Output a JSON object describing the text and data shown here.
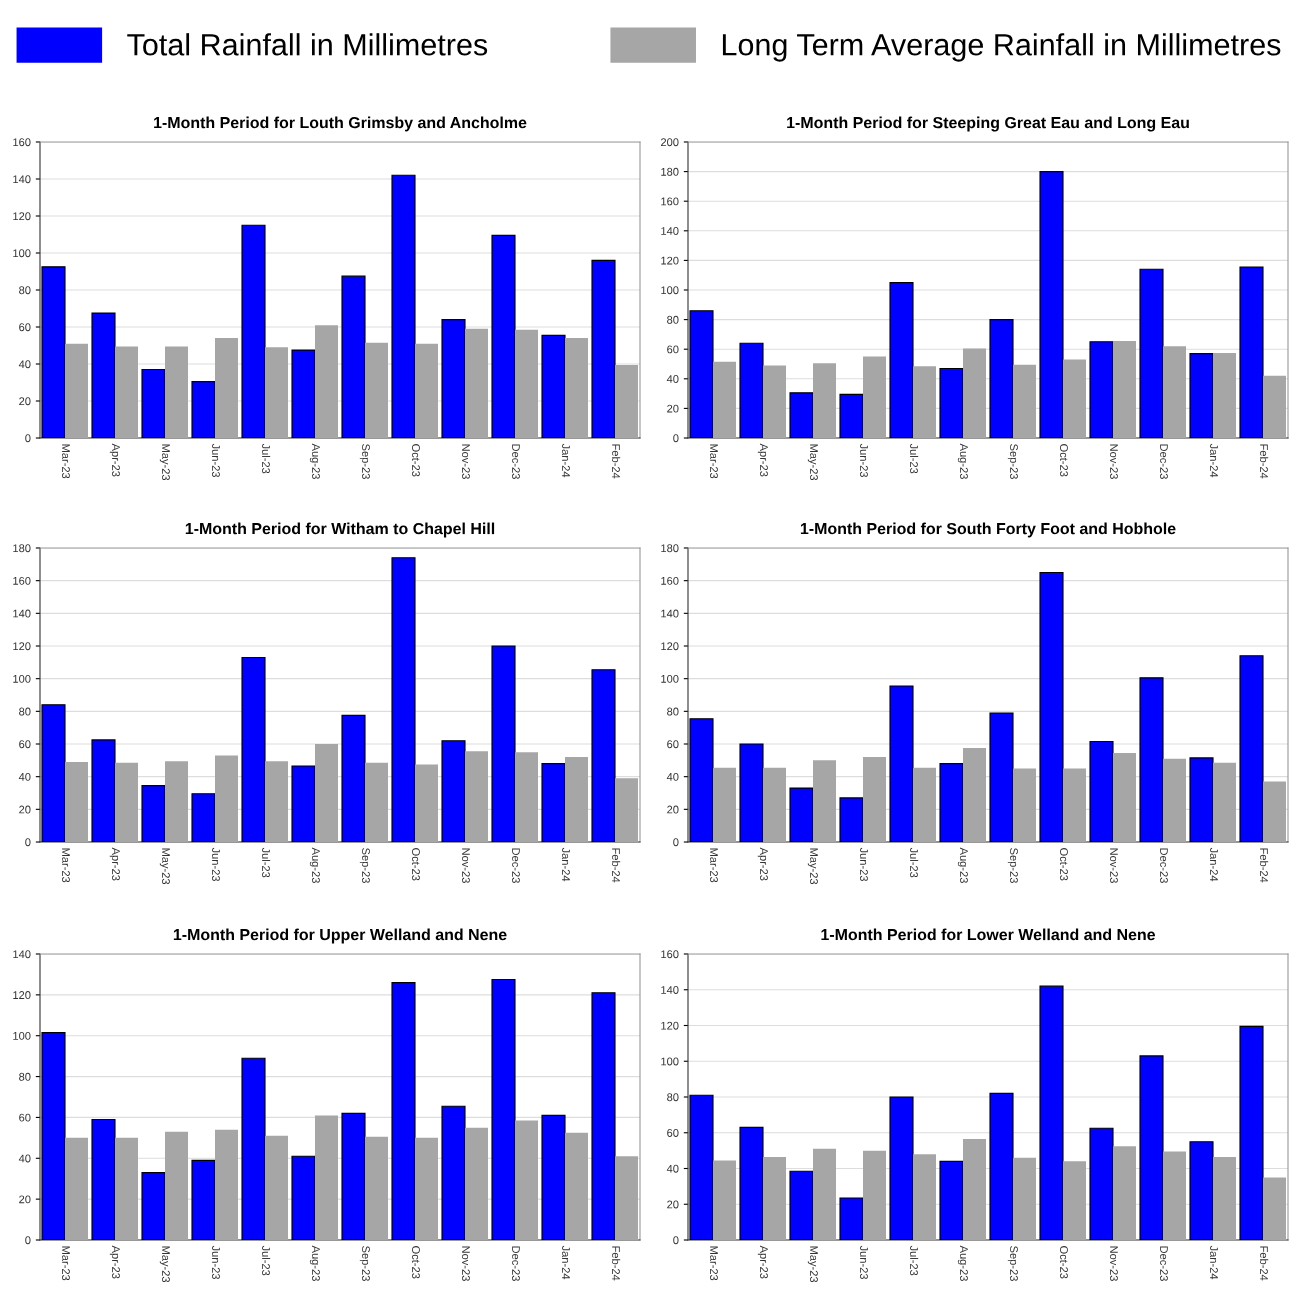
{
  "chart_data": [
    {
      "type": "bar",
      "title": "1-Month Period for Louth Grimsby and Ancholme",
      "legend": "top",
      "grid": "y",
      "categories": [
        "Mar-23",
        "Apr-23",
        "May-23",
        "Jun-23",
        "Jul-23",
        "Aug-23",
        "Sep-23",
        "Oct-23",
        "Nov-23",
        "Dec-23",
        "Jan-24",
        "Feb-24"
      ],
      "ylim": [
        0,
        160
      ],
      "yticks": [
        0,
        20,
        40,
        60,
        80,
        100,
        120,
        140,
        160
      ],
      "series": [
        {
          "name": "Total Rainfall in Millimetres",
          "color": "#0000ff",
          "values": [
            92.5,
            67.5,
            37,
            30.5,
            115,
            47.5,
            87.5,
            142,
            64,
            109.5,
            55.5,
            96
          ]
        },
        {
          "name": "Long Term Average Rainfall in Millimetres",
          "color": "#a6a6a6",
          "values": [
            51,
            49.5,
            49.5,
            54,
            49,
            61,
            51.5,
            51,
            59,
            58.5,
            54,
            39.5
          ]
        }
      ]
    },
    {
      "type": "bar",
      "title": "1-Month Period for Steeping Great Eau and Long Eau",
      "grid": "y",
      "categories": [
        "Mar-23",
        "Apr-23",
        "May-23",
        "Jun-23",
        "Jul-23",
        "Aug-23",
        "Sep-23",
        "Oct-23",
        "Nov-23",
        "Dec-23",
        "Jan-24",
        "Feb-24"
      ],
      "ylim": [
        0,
        200
      ],
      "yticks": [
        0,
        20,
        40,
        60,
        80,
        100,
        120,
        140,
        160,
        180,
        200
      ],
      "series": [
        {
          "color": "#0000ff",
          "values": [
            86,
            64,
            30.5,
            29.5,
            105,
            47,
            80,
            180,
            65,
            114,
            57,
            115.5
          ]
        },
        {
          "color": "#a6a6a6",
          "values": [
            51.5,
            49,
            50.5,
            55,
            48.5,
            60.5,
            49.5,
            53,
            65.5,
            62,
            57.5,
            42
          ]
        }
      ]
    },
    {
      "type": "bar",
      "title": "1-Month Period for Witham to Chapel Hill",
      "grid": "y",
      "categories": [
        "Mar-23",
        "Apr-23",
        "May-23",
        "Jun-23",
        "Jul-23",
        "Aug-23",
        "Sep-23",
        "Oct-23",
        "Nov-23",
        "Dec-23",
        "Jan-24",
        "Feb-24"
      ],
      "ylim": [
        0,
        180
      ],
      "yticks": [
        0,
        20,
        40,
        60,
        80,
        100,
        120,
        140,
        160,
        180
      ],
      "series": [
        {
          "color": "#0000ff",
          "values": [
            84,
            62.5,
            34.5,
            29.5,
            113,
            46.5,
            77.5,
            174,
            62,
            120,
            48,
            105.5
          ]
        },
        {
          "color": "#a6a6a6",
          "values": [
            49,
            48.5,
            49.5,
            53,
            49.5,
            60,
            48.5,
            47.5,
            55.5,
            55,
            52,
            39
          ]
        }
      ]
    },
    {
      "type": "bar",
      "title": "1-Month Period for South Forty Foot and Hobhole",
      "grid": "y",
      "categories": [
        "Mar-23",
        "Apr-23",
        "May-23",
        "Jun-23",
        "Jul-23",
        "Aug-23",
        "Sep-23",
        "Oct-23",
        "Nov-23",
        "Dec-23",
        "Jan-24",
        "Feb-24"
      ],
      "ylim": [
        0,
        180
      ],
      "yticks": [
        0,
        20,
        40,
        60,
        80,
        100,
        120,
        140,
        160,
        180
      ],
      "series": [
        {
          "color": "#0000ff",
          "values": [
            75.5,
            60,
            33,
            27,
            95.5,
            48,
            79,
            165,
            61.5,
            100.5,
            51.5,
            114
          ]
        },
        {
          "color": "#a6a6a6",
          "values": [
            45.5,
            45.5,
            50,
            52,
            45.5,
            57.5,
            45,
            45,
            54.5,
            51,
            48.5,
            37
          ]
        }
      ]
    },
    {
      "type": "bar",
      "title": "1-Month Period for Upper Welland and Nene",
      "grid": "y",
      "categories": [
        "Mar-23",
        "Apr-23",
        "May-23",
        "Jun-23",
        "Jul-23",
        "Aug-23",
        "Sep-23",
        "Oct-23",
        "Nov-23",
        "Dec-23",
        "Jan-24",
        "Feb-24"
      ],
      "ylim": [
        0,
        140
      ],
      "yticks": [
        0,
        20,
        40,
        60,
        80,
        100,
        120,
        140
      ],
      "series": [
        {
          "color": "#0000ff",
          "values": [
            101.5,
            59,
            33,
            39,
            89,
            41,
            62,
            126,
            65.5,
            127.5,
            61,
            121
          ]
        },
        {
          "color": "#a6a6a6",
          "values": [
            50,
            50,
            53,
            54,
            51,
            61,
            50.5,
            50,
            55,
            58.5,
            52.5,
            41
          ]
        }
      ]
    },
    {
      "type": "bar",
      "title": "1-Month Period for Lower Welland and Nene",
      "grid": "y",
      "categories": [
        "Mar-23",
        "Apr-23",
        "May-23",
        "Jun-23",
        "Jul-23",
        "Aug-23",
        "Sep-23",
        "Oct-23",
        "Nov-23",
        "Dec-23",
        "Jan-24",
        "Feb-24"
      ],
      "ylim": [
        0,
        160
      ],
      "yticks": [
        0,
        20,
        40,
        60,
        80,
        100,
        120,
        140,
        160
      ],
      "series": [
        {
          "color": "#0000ff",
          "values": [
            81,
            63,
            38.5,
            23.5,
            80,
            44,
            82,
            142,
            62.5,
            103,
            55,
            119.5
          ]
        },
        {
          "color": "#a6a6a6",
          "values": [
            44.5,
            46.5,
            51,
            50,
            48,
            56.5,
            46,
            44,
            52.5,
            49.5,
            46.5,
            35
          ]
        }
      ]
    }
  ]
}
